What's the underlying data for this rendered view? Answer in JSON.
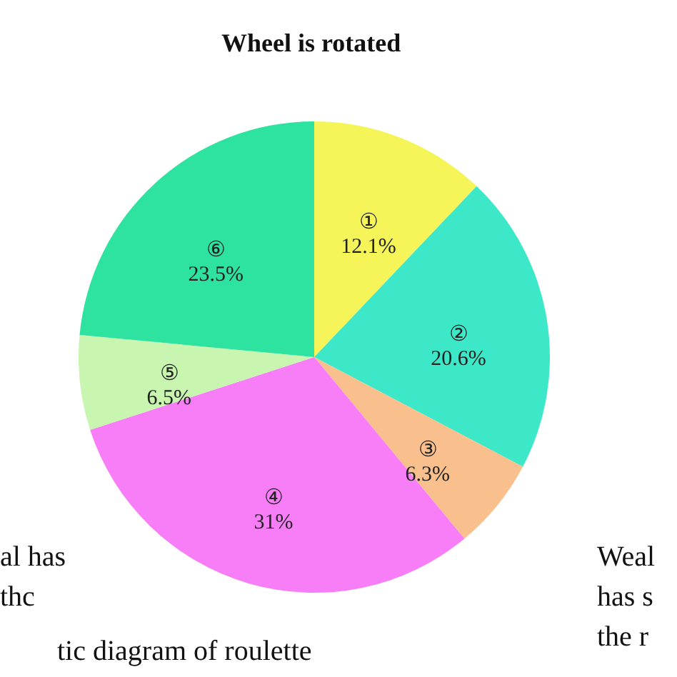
{
  "chart_data": {
    "type": "pie",
    "title": "Wheel is rotated",
    "categories": [
      "①",
      "②",
      "③",
      "④",
      "⑤",
      "⑥"
    ],
    "values": [
      12.1,
      20.6,
      6.3,
      31,
      6.5,
      23.5
    ],
    "value_labels": [
      "12.1%",
      "20.6%",
      "6.3%",
      "31%",
      "6.5%",
      "23.5%"
    ],
    "colors": [
      "#f5f55a",
      "#3de8c8",
      "#f9c08e",
      "#f77ef7",
      "#c8f5b0",
      "#2ee3a0"
    ],
    "annotations": [
      "al has\nthc",
      "Weal\nhas s\nthe r",
      "tic diagram of roulette"
    ]
  }
}
